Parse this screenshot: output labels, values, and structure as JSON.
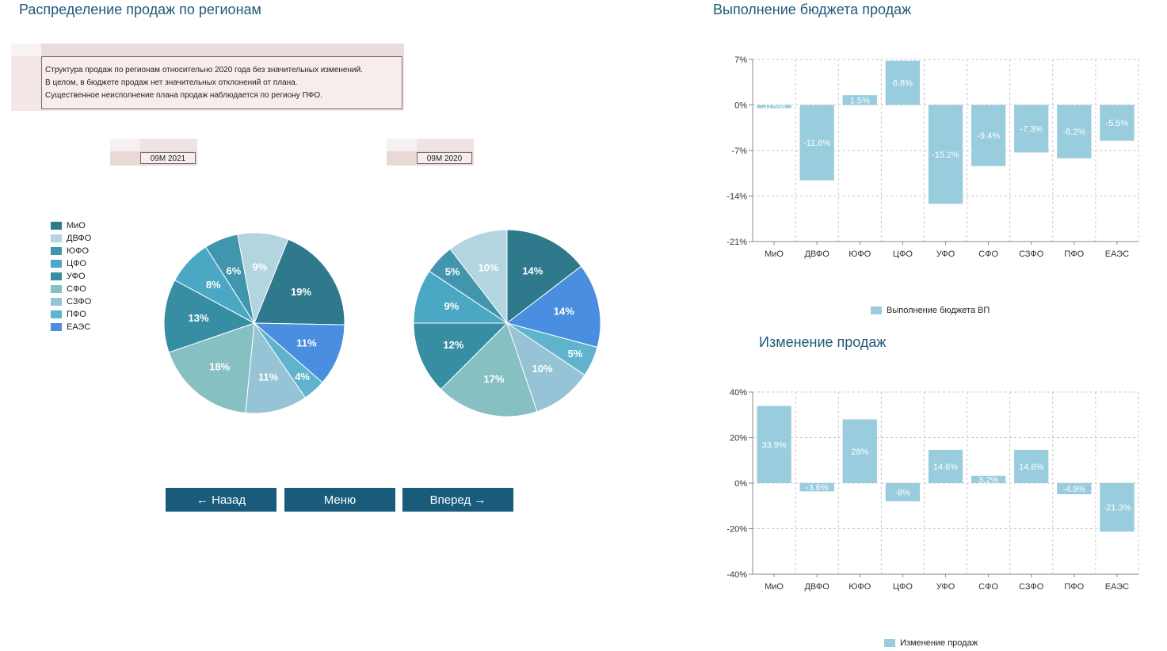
{
  "titles": {
    "distribution": "Распределение продаж по регионам",
    "budget": "Выполнение бюджета продаж",
    "change": "Изменение продаж"
  },
  "comment": [
    "Структура продаж по регионам относительно 2020 года без значительных изменений.",
    "В целом, в бюджете продаж нет значительных отклонений от плана.",
    "Существенное неисполнение плана продаж наблюдается по региону ПФО."
  ],
  "periods": {
    "left": "09M 2021",
    "right": "09M 2020"
  },
  "legend": [
    {
      "label": "МиО",
      "color": "#2e7a8c"
    },
    {
      "label": "ДВФО",
      "color": "#b2d5df"
    },
    {
      "label": "ЮФО",
      "color": "#4196ae"
    },
    {
      "label": "ЦФО",
      "color": "#4aa8c4"
    },
    {
      "label": "УФО",
      "color": "#378ea3"
    },
    {
      "label": "СФО",
      "color": "#86c0c3"
    },
    {
      "label": "СЗФО",
      "color": "#96c4d6"
    },
    {
      "label": "ПФО",
      "color": "#5fb3cd"
    },
    {
      "label": "ЕАЭС",
      "color": "#4a8ee0"
    }
  ],
  "buttons": {
    "back": "← Назад",
    "menu": "Меню",
    "forward": "Вперед →"
  },
  "chart_data": [
    {
      "type": "pie",
      "title": "09M 2021",
      "slices": [
        {
          "label": "МиО",
          "value": 19,
          "text": "19%",
          "color": "#2e7a8c"
        },
        {
          "label": "ЕАЭС",
          "value": 11,
          "text": "11%",
          "color": "#4a8ee0"
        },
        {
          "label": "ПФО",
          "value": 4,
          "text": "4%",
          "color": "#5fb3cd"
        },
        {
          "label": "СЗФО",
          "value": 11,
          "text": "11%",
          "color": "#96c4d6"
        },
        {
          "label": "СФО",
          "value": 18,
          "text": "18%",
          "color": "#86c0c3"
        },
        {
          "label": "УФО",
          "value": 13,
          "text": "13%",
          "color": "#378ea3"
        },
        {
          "label": "ЦФО",
          "value": 8,
          "text": "8%",
          "color": "#4aa8c4"
        },
        {
          "label": "ЮФО",
          "value": 6,
          "text": "6%",
          "color": "#4196ae"
        },
        {
          "label": "ДВФО",
          "value": 9,
          "text": "9%",
          "color": "#b2d5df"
        }
      ]
    },
    {
      "type": "pie",
      "title": "09M 2020",
      "slices": [
        {
          "label": "МиО",
          "value": 14,
          "text": "14%",
          "color": "#2e7a8c"
        },
        {
          "label": "ЕАЭС",
          "value": 14,
          "text": "14%",
          "color": "#4a8ee0"
        },
        {
          "label": "ПФО",
          "value": 5,
          "text": "5%",
          "color": "#5fb3cd"
        },
        {
          "label": "СЗФО",
          "value": 10,
          "text": "10%",
          "color": "#96c4d6"
        },
        {
          "label": "СФО",
          "value": 17,
          "text": "17%",
          "color": "#86c0c3"
        },
        {
          "label": "УФО",
          "value": 12,
          "text": "12%",
          "color": "#378ea3"
        },
        {
          "label": "ЦФО",
          "value": 9,
          "text": "9%",
          "color": "#4aa8c4"
        },
        {
          "label": "ЮФО",
          "value": 5,
          "text": "5%",
          "color": "#4196ae"
        },
        {
          "label": "ДВФО",
          "value": 10,
          "text": "10%",
          "color": "#b2d5df"
        }
      ]
    },
    {
      "type": "bar",
      "title": "Выполнение бюджета продаж",
      "categories": [
        "МиО",
        "ДВФО",
        "ЮФО",
        "ЦФО",
        "УФО",
        "СФО",
        "СЗФО",
        "ПФО",
        "ЕАЭС"
      ],
      "series": [
        {
          "name": "Выполнение бюджета ВП",
          "values": [
            -0.5,
            -11.6,
            1.5,
            6.8,
            -15.2,
            -9.4,
            -7.3,
            -8.2,
            -5.5
          ],
          "labels": [
            "-0.5%",
            "-11.6%",
            "1.5%",
            "6.8%",
            "-15.2%",
            "-9.4%",
            "-7.3%",
            "-8.2%",
            "-5.5%"
          ]
        }
      ],
      "yticks": [
        7,
        0,
        -7,
        -14,
        -21
      ],
      "ytick_labels": [
        "7%",
        "0%",
        "-7%",
        "-14%",
        "-21%"
      ],
      "ylim": [
        -21,
        7
      ],
      "color": "#99ccdd",
      "legend": "Выполнение бюджета ВП"
    },
    {
      "type": "bar",
      "title": "Изменение продаж",
      "categories": [
        "МиО",
        "ДВФО",
        "ЮФО",
        "ЦФО",
        "УФО",
        "СФО",
        "СЗФО",
        "ПФО",
        "ЕАЭС"
      ],
      "series": [
        {
          "name": "Изменение продаж",
          "values": [
            33.9,
            -3.6,
            28,
            -8,
            14.6,
            3.2,
            14.6,
            -4.9,
            -21.3
          ],
          "labels": [
            "33.9%",
            "-3.6%",
            "28%",
            "-8%",
            "14.6%",
            "3.2%",
            "14.6%",
            "-4.9%",
            "-21.3%"
          ]
        }
      ],
      "yticks": [
        40,
        20,
        0,
        -20,
        -40
      ],
      "ytick_labels": [
        "40%",
        "20%",
        "0%",
        "-20%",
        "-40%"
      ],
      "ylim": [
        -40,
        40
      ],
      "color": "#99ccdd",
      "legend": "Изменение продаж"
    }
  ]
}
